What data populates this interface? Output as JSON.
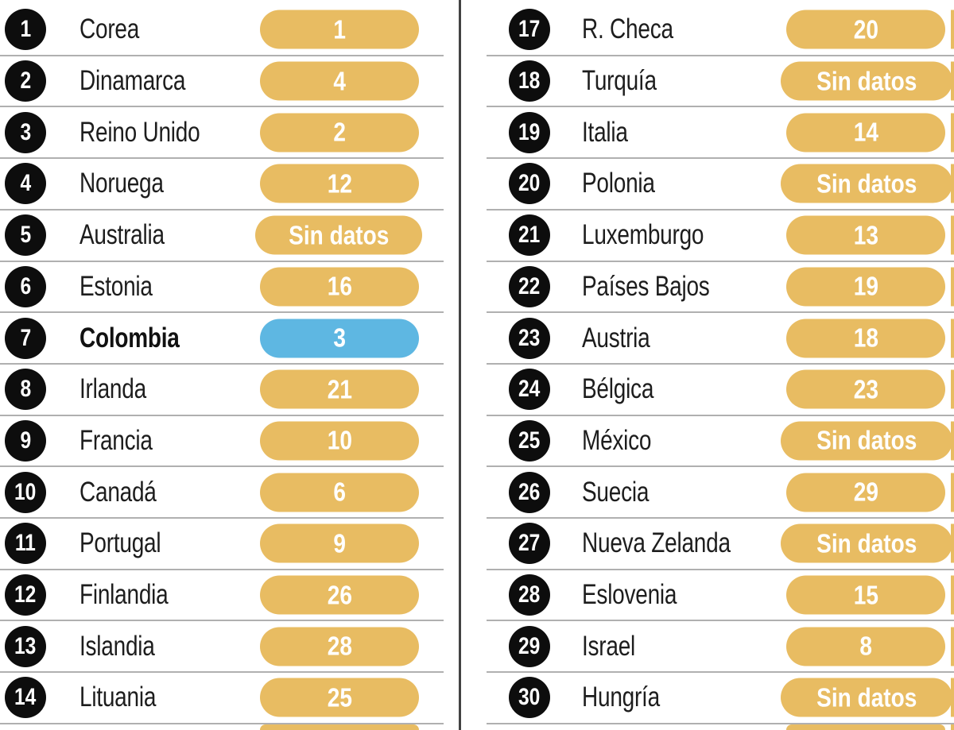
{
  "labels": {
    "no_data": "Sin datos"
  },
  "colors": {
    "pill_yellow": "#e8bc62",
    "pill_blue": "#5eb7e2",
    "rank_circle": "#0d0d0d",
    "country_text": "#1d1d1d",
    "pill_text": "#ffffff",
    "separator": "#b0b0b0",
    "divider": "#424242",
    "background": "#ffffff"
  },
  "columns": {
    "left": {
      "rows": [
        {
          "rank": "1",
          "country": "Corea",
          "value": "1",
          "no_data": false,
          "highlight": false
        },
        {
          "rank": "2",
          "country": "Dinamarca",
          "value": "4",
          "no_data": false,
          "highlight": false
        },
        {
          "rank": "3",
          "country": "Reino Unido",
          "value": "2",
          "no_data": false,
          "highlight": false
        },
        {
          "rank": "4",
          "country": "Noruega",
          "value": "12",
          "no_data": false,
          "highlight": false
        },
        {
          "rank": "5",
          "country": "Australia",
          "value": "Sin datos",
          "no_data": true,
          "highlight": false
        },
        {
          "rank": "6",
          "country": "Estonia",
          "value": "16",
          "no_data": false,
          "highlight": false
        },
        {
          "rank": "7",
          "country": "Colombia",
          "value": "3",
          "no_data": false,
          "highlight": true
        },
        {
          "rank": "8",
          "country": "Irlanda",
          "value": "21",
          "no_data": false,
          "highlight": false
        },
        {
          "rank": "9",
          "country": "Francia",
          "value": "10",
          "no_data": false,
          "highlight": false
        },
        {
          "rank": "10",
          "country": "Canadá",
          "value": "6",
          "no_data": false,
          "highlight": false
        },
        {
          "rank": "11",
          "country": "Portugal",
          "value": "9",
          "no_data": false,
          "highlight": false
        },
        {
          "rank": "12",
          "country": "Finlandia",
          "value": "26",
          "no_data": false,
          "highlight": false
        },
        {
          "rank": "13",
          "country": "Islandia",
          "value": "28",
          "no_data": false,
          "highlight": false
        },
        {
          "rank": "14",
          "country": "Lituania",
          "value": "25",
          "no_data": false,
          "highlight": false
        }
      ]
    },
    "right": {
      "rows": [
        {
          "rank": "17",
          "country": "R. Checa",
          "value": "20",
          "no_data": false,
          "highlight": false
        },
        {
          "rank": "18",
          "country": "Turquía",
          "value": "Sin datos",
          "no_data": true,
          "highlight": false
        },
        {
          "rank": "19",
          "country": "Italia",
          "value": "14",
          "no_data": false,
          "highlight": false
        },
        {
          "rank": "20",
          "country": "Polonia",
          "value": "Sin datos",
          "no_data": true,
          "highlight": false
        },
        {
          "rank": "21",
          "country": "Luxemburgo",
          "value": "13",
          "no_data": false,
          "highlight": false
        },
        {
          "rank": "22",
          "country": "Países Bajos",
          "value": "19",
          "no_data": false,
          "highlight": false
        },
        {
          "rank": "23",
          "country": "Austria",
          "value": "18",
          "no_data": false,
          "highlight": false
        },
        {
          "rank": "24",
          "country": "Bélgica",
          "value": "23",
          "no_data": false,
          "highlight": false
        },
        {
          "rank": "25",
          "country": "México",
          "value": "Sin datos",
          "no_data": true,
          "highlight": false
        },
        {
          "rank": "26",
          "country": "Suecia",
          "value": "29",
          "no_data": false,
          "highlight": false
        },
        {
          "rank": "27",
          "country": "Nueva Zelanda",
          "value": "Sin datos",
          "no_data": true,
          "highlight": false
        },
        {
          "rank": "28",
          "country": "Eslovenia",
          "value": "15",
          "no_data": false,
          "highlight": false
        },
        {
          "rank": "29",
          "country": "Israel",
          "value": "8",
          "no_data": false,
          "highlight": false
        },
        {
          "rank": "30",
          "country": "Hungría",
          "value": "Sin datos",
          "no_data": true,
          "highlight": false
        }
      ]
    }
  },
  "chart_data": {
    "type": "table",
    "columns": [
      "rank",
      "country",
      "value"
    ],
    "no_data_label": "Sin datos",
    "highlight": {
      "country": "Colombia",
      "rank": 7,
      "value": 3,
      "color": "#5eb7e2"
    },
    "rows": [
      [
        1,
        "Corea",
        1
      ],
      [
        2,
        "Dinamarca",
        4
      ],
      [
        3,
        "Reino Unido",
        2
      ],
      [
        4,
        "Noruega",
        12
      ],
      [
        5,
        "Australia",
        "Sin datos"
      ],
      [
        6,
        "Estonia",
        16
      ],
      [
        7,
        "Colombia",
        3
      ],
      [
        8,
        "Irlanda",
        21
      ],
      [
        9,
        "Francia",
        10
      ],
      [
        10,
        "Canadá",
        6
      ],
      [
        11,
        "Portugal",
        9
      ],
      [
        12,
        "Finlandia",
        26
      ],
      [
        13,
        "Islandia",
        28
      ],
      [
        14,
        "Lituania",
        25
      ],
      [
        17,
        "R. Checa",
        20
      ],
      [
        18,
        "Turquía",
        "Sin datos"
      ],
      [
        19,
        "Italia",
        14
      ],
      [
        20,
        "Polonia",
        "Sin datos"
      ],
      [
        21,
        "Luxemburgo",
        13
      ],
      [
        22,
        "Países Bajos",
        19
      ],
      [
        23,
        "Austria",
        18
      ],
      [
        24,
        "Bélgica",
        23
      ],
      [
        25,
        "México",
        "Sin datos"
      ],
      [
        26,
        "Suecia",
        29
      ],
      [
        27,
        "Nueva Zelanda",
        "Sin datos"
      ],
      [
        28,
        "Eslovenia",
        15
      ],
      [
        29,
        "Israel",
        8
      ],
      [
        30,
        "Hungría",
        "Sin datos"
      ]
    ]
  }
}
